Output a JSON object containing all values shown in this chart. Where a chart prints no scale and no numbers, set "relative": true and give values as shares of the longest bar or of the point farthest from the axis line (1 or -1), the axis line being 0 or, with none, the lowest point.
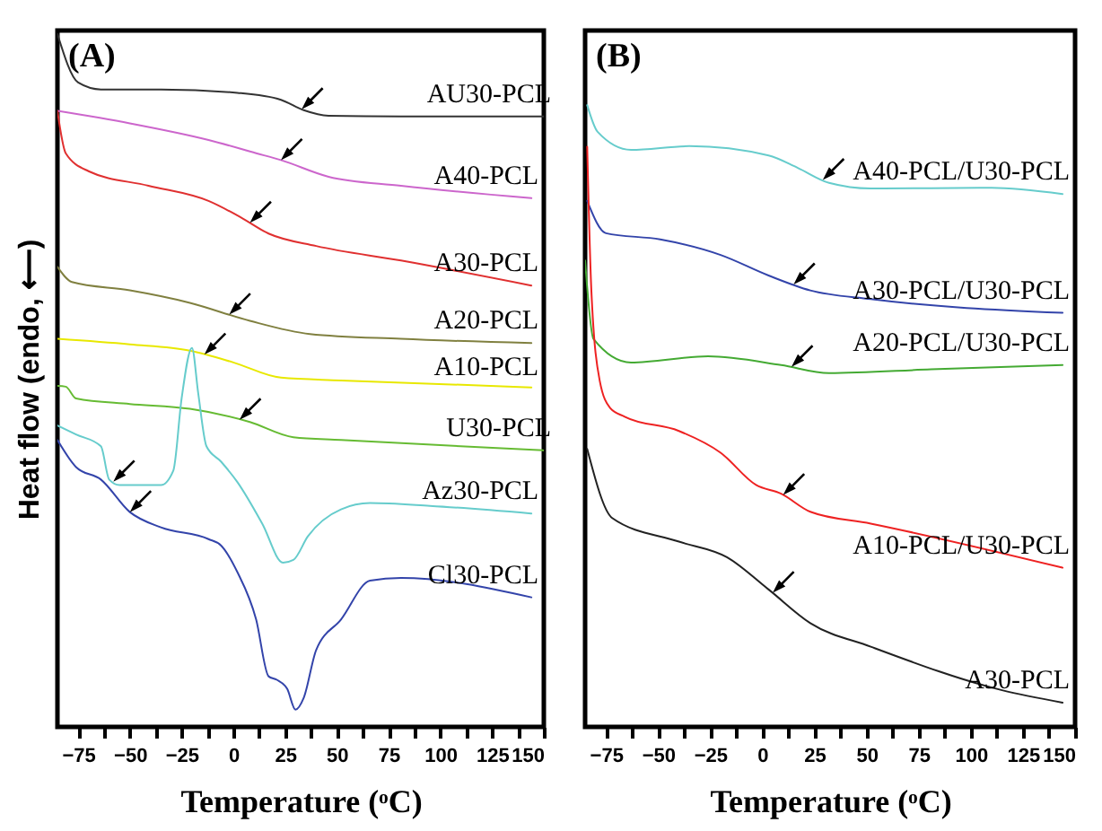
{
  "chart_data": [
    {
      "type": "line",
      "title": "(A)",
      "xlabel": "Temperature (ᵒC)",
      "ylabel": "Heat flow (endo, ⟵)",
      "relative": true,
      "legend": false,
      "grid": false,
      "line_style": "solid",
      "xlim": [
        -85,
        150
      ],
      "xticks": [
        -75,
        {
          "value": -62.5,
          "label": null
        },
        -50,
        {
          "value": -37.5,
          "label": null
        },
        -25,
        {
          "value": -12.5,
          "label": null
        },
        0,
        {
          "value": 12.5,
          "label": null
        },
        25,
        {
          "value": 37.5,
          "label": null
        },
        50,
        {
          "value": 62.5,
          "label": null
        },
        75,
        {
          "value": 87.5,
          "label": null
        },
        100,
        {
          "value": 112.5,
          "label": null
        },
        125,
        {
          "value": 137.5,
          "label": null
        },
        150
      ],
      "series": [
        {
          "name": "AU30-PCL",
          "color": "#333333",
          "x": [
            -85,
            -75,
            -64,
            -35,
            2,
            23,
            34,
            46,
            81,
            150
          ],
          "values": [
            1.0,
            0.93,
            0.92,
            0.92,
            0.915,
            0.905,
            0.89,
            0.882,
            0.881,
            0.881
          ]
        },
        {
          "name": "A40-PCL",
          "color": "#cc66cc",
          "x": [
            -85,
            -50,
            -12,
            11,
            23,
            46,
            81,
            144
          ],
          "values": [
            0.889,
            0.871,
            0.847,
            0.828,
            0.818,
            0.794,
            0.781,
            0.763
          ]
        },
        {
          "name": "A30-PCL",
          "color": "#e03030",
          "x": [
            -85,
            -81,
            -70,
            -41,
            -12,
            2,
            17,
            40,
            81,
            144
          ],
          "values": [
            0.889,
            0.828,
            0.802,
            0.781,
            0.759,
            0.738,
            0.712,
            0.694,
            0.673,
            0.637
          ]
        },
        {
          "name": "A20-PCL",
          "color": "#808040",
          "x": [
            -85,
            -78,
            -50,
            -21,
            8,
            37,
            81,
            144
          ],
          "values": [
            0.664,
            0.642,
            0.63,
            0.612,
            0.586,
            0.567,
            0.56,
            0.554
          ]
        },
        {
          "name": "A10-PCL",
          "color": "#e8e800",
          "x": [
            -85,
            -50,
            -21,
            0,
            23,
            52,
            144
          ],
          "values": [
            0.56,
            0.552,
            0.543,
            0.526,
            0.504,
            0.5,
            0.49
          ]
        },
        {
          "name": "U30-PCL",
          "color": "#66bb33",
          "x": [
            -85,
            -81,
            -76,
            -50,
            -21,
            8,
            29,
            52,
            150
          ],
          "values": [
            0.492,
            0.491,
            0.474,
            0.466,
            0.459,
            0.44,
            0.418,
            0.414,
            0.399
          ]
        },
        {
          "name": "Az30-PCL",
          "color": "#66cccc",
          "x": [
            -85,
            -76,
            -64,
            -60,
            -55,
            -35,
            -29,
            -25,
            -20,
            -17,
            -13,
            -6,
            2,
            14,
            24,
            29,
            36,
            52,
            66,
            95,
            144
          ],
          "values": [
            0.435,
            0.422,
            0.405,
            0.357,
            0.349,
            0.349,
            0.37,
            0.474,
            0.547,
            0.482,
            0.405,
            0.383,
            0.353,
            0.293,
            0.237,
            0.241,
            0.275,
            0.314,
            0.323,
            0.319,
            0.308
          ]
        },
        {
          "name": "Cl30-PCL",
          "color": "#3344aa",
          "x": [
            -85,
            -76,
            -64,
            -50,
            -35,
            -12,
            -6,
            2,
            11,
            17,
            21,
            26,
            30,
            34,
            40,
            52,
            66,
            81,
            144
          ],
          "values": [
            0.414,
            0.375,
            0.357,
            0.31,
            0.288,
            0.271,
            0.262,
            0.223,
            0.155,
            0.073,
            0.068,
            0.055,
            0.025,
            0.042,
            0.111,
            0.155,
            0.211,
            0.215,
            0.187
          ]
        }
      ]
    },
    {
      "type": "line",
      "title": "(B)",
      "xlabel": "Temperature (ᵒC)",
      "relative": true,
      "legend": false,
      "grid": false,
      "line_style": "solid",
      "xlim": [
        -85,
        150
      ],
      "xticks": [
        -75,
        {
          "value": -62.5,
          "label": null
        },
        -50,
        {
          "value": -37.5,
          "label": null
        },
        -25,
        {
          "value": -12.5,
          "label": null
        },
        0,
        {
          "value": 12.5,
          "label": null
        },
        25,
        {
          "value": 37.5,
          "label": null
        },
        50,
        {
          "value": 62.5,
          "label": null
        },
        75,
        {
          "value": 87.5,
          "label": null
        },
        100,
        {
          "value": 112.5,
          "label": null
        },
        125,
        {
          "value": 137.5,
          "label": null
        },
        150
      ],
      "series": [
        {
          "name": "A40-PCL/U30-PCL",
          "color": "#66cccc",
          "x": [
            -84,
            -79,
            -63,
            -35,
            3,
            17,
            32,
            52,
            110,
            144
          ],
          "values": [
            1.0,
            0.957,
            0.928,
            0.934,
            0.919,
            0.899,
            0.875,
            0.866,
            0.867,
            0.857
          ]
        },
        {
          "name": "A30-PCL/U30-PCL",
          "color": "#3344aa",
          "x": [
            -84,
            -75,
            -49,
            -20,
            3,
            23,
            52,
            144
          ],
          "values": [
            0.846,
            0.794,
            0.784,
            0.759,
            0.726,
            0.702,
            0.688,
            0.666
          ]
        },
        {
          "name": "A20-PCL/U30-PCL",
          "color": "#44aa33",
          "x": [
            -85,
            -81,
            -63,
            -26,
            9,
            32,
            81,
            144
          ],
          "values": [
            0.75,
            0.624,
            0.586,
            0.596,
            0.582,
            0.569,
            0.575,
            0.582
          ]
        },
        {
          "name": "A10-PCL/U30-PCL",
          "color": "#ee2222",
          "x": [
            -84,
            -82,
            -78,
            -73,
            -66,
            -40,
            -20,
            -3,
            9,
            23,
            52,
            144
          ],
          "values": [
            0.933,
            0.702,
            0.557,
            0.513,
            0.499,
            0.476,
            0.441,
            0.389,
            0.375,
            0.346,
            0.327,
            0.256
          ]
        },
        {
          "name": "A30-PCL",
          "color": "#222222",
          "x": [
            -84,
            -72,
            -40,
            -17,
            3,
            23,
            52,
            115,
            144
          ],
          "values": [
            0.447,
            0.336,
            0.298,
            0.273,
            0.221,
            0.167,
            0.129,
            0.059,
            0.039
          ]
        }
      ]
    }
  ]
}
